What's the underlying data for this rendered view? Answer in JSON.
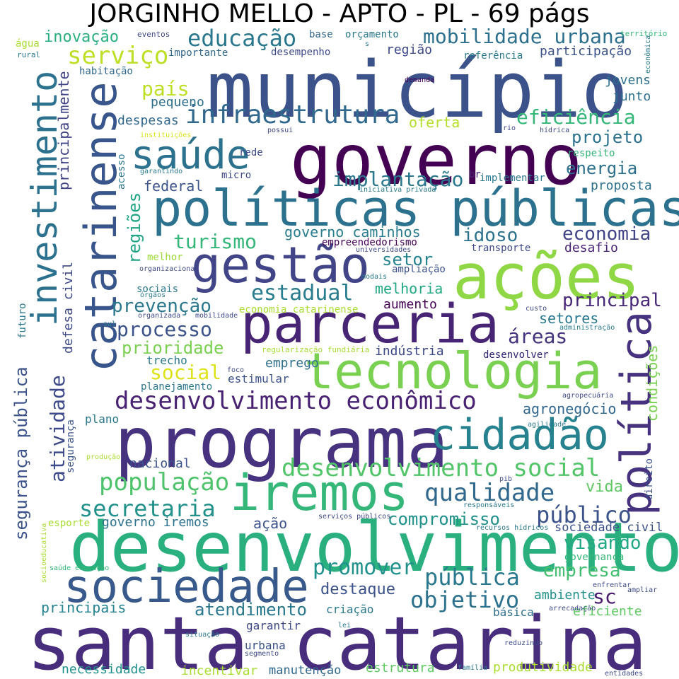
{
  "title": "JORGINHO MELLO - APTO - PL - 69 págs",
  "words": [
    {
      "text": "município",
      "color": "#3b528b"
    },
    {
      "text": "governo",
      "color": "#440154"
    },
    {
      "text": "santa catarina",
      "color": "#472d7b"
    },
    {
      "text": "programa",
      "color": "#46327e"
    },
    {
      "text": "desenvolvimento",
      "color": "#2ab07f"
    },
    {
      "text": "ações",
      "color": "#8fd744"
    },
    {
      "text": "catarinense",
      "color": "#39568c"
    },
    {
      "text": "políticas públicas",
      "color": "#2c728e"
    },
    {
      "text": "gestão",
      "color": "#414487"
    },
    {
      "text": "parceria",
      "color": "#482475"
    },
    {
      "text": "tecnologia",
      "color": "#7ad151"
    },
    {
      "text": "política",
      "color": "#46327e"
    },
    {
      "text": "investimento",
      "color": "#2c728e"
    },
    {
      "text": "sociedade",
      "color": "#38598c"
    },
    {
      "text": "iremos",
      "color": "#35b779"
    },
    {
      "text": "cidadão",
      "color": "#26828e"
    },
    {
      "text": "saúde",
      "color": "#2c728e"
    },
    {
      "text": "desenvolvimento econômico",
      "color": "#482173"
    },
    {
      "text": "infraestrutura",
      "color": "#31688e"
    },
    {
      "text": "segurança pública",
      "color": "#3b528b"
    },
    {
      "text": "desenvolvimento social",
      "color": "#52c569"
    },
    {
      "text": "população",
      "color": "#4ec36b"
    },
    {
      "text": "educação",
      "color": "#2a788e"
    },
    {
      "text": "qualidade",
      "color": "#31688e"
    },
    {
      "text": "secretaria",
      "color": "#21918c"
    },
    {
      "text": "mobilidade urbana",
      "color": "#2d708e"
    },
    {
      "text": "serviço",
      "color": "#bddf26"
    },
    {
      "text": "estadual",
      "color": "#287c8e"
    },
    {
      "text": "processo",
      "color": "#3b528b"
    },
    {
      "text": "regiões",
      "color": "#21a585"
    },
    {
      "text": "turismo",
      "color": "#35b779"
    },
    {
      "text": "promover",
      "color": "#21918c"
    },
    {
      "text": "pública",
      "color": "#2a788e"
    },
    {
      "text": "público",
      "color": "#3b528b"
    },
    {
      "text": "atividade",
      "color": "#3e4a89"
    },
    {
      "text": "objetivo",
      "color": "#2c728e"
    },
    {
      "text": "eficiência",
      "color": "#35b779"
    },
    {
      "text": "implantação",
      "color": "#2a788e"
    },
    {
      "text": "social",
      "color": "#dde318"
    },
    {
      "text": "país",
      "color": "#bddf26"
    },
    {
      "text": "sc",
      "color": "#481a6c"
    },
    {
      "text": "economia",
      "color": "#414487"
    },
    {
      "text": "visando",
      "color": "#22a884"
    },
    {
      "text": "principal",
      "color": "#482878"
    },
    {
      "text": "prevenção",
      "color": "#2a788e"
    },
    {
      "text": "prioridade",
      "color": "#7ad151"
    },
    {
      "text": "áreas",
      "color": "#46337e"
    },
    {
      "text": "projeto",
      "color": "#2c728e"
    },
    {
      "text": "energia",
      "color": "#2d708e"
    },
    {
      "text": "compromisso",
      "color": "#21918c"
    },
    {
      "text": "idoso",
      "color": "#2c728e"
    },
    {
      "text": "setor",
      "color": "#25858e"
    },
    {
      "text": "empresa",
      "color": "#44bf70"
    },
    {
      "text": "atendimento",
      "color": "#2a788e"
    },
    {
      "text": "inovação",
      "color": "#2ab07f"
    },
    {
      "text": "principalmente",
      "color": "#414487"
    },
    {
      "text": "governo caminhos",
      "color": "#287d8e"
    },
    {
      "text": "vida",
      "color": "#5ec962"
    },
    {
      "text": "destaque",
      "color": "#3b528b"
    },
    {
      "text": "condições",
      "color": "#7ad151"
    },
    {
      "text": "agronegócio",
      "color": "#31688e"
    },
    {
      "text": "melhoria",
      "color": "#22a884"
    },
    {
      "text": "setores",
      "color": "#2a788e"
    },
    {
      "text": "oferta",
      "color": "#b5de2b"
    },
    {
      "text": "região",
      "color": "#3e4989"
    },
    {
      "text": "participação",
      "color": "#3b528b"
    },
    {
      "text": "desafio",
      "color": "#482475"
    },
    {
      "text": "indústria",
      "color": "#3e4989"
    },
    {
      "text": "proposta",
      "color": "#2d708e"
    },
    {
      "text": "defesa civil",
      "color": "#3e4989"
    },
    {
      "text": "federal",
      "color": "#3b528b"
    },
    {
      "text": "despesas",
      "color": "#31688e"
    },
    {
      "text": "pequeno",
      "color": "#2d708e"
    },
    {
      "text": "jovens",
      "color": "#2d708e"
    },
    {
      "text": "junto",
      "color": "#2d708e"
    },
    {
      "text": "ação",
      "color": "#3b528b"
    },
    {
      "text": "governo iremos",
      "color": "#2c728e"
    },
    {
      "text": "sociedade civil",
      "color": "#3b528b"
    },
    {
      "text": "ambiente",
      "color": "#21918c"
    },
    {
      "text": "eficiente",
      "color": "#5ec962"
    },
    {
      "text": "nacional",
      "color": "#3b528b"
    },
    {
      "text": "principais",
      "color": "#26828e"
    },
    {
      "text": "necessidade",
      "color": "#21918c"
    },
    {
      "text": "incentivar",
      "color": "#aadc32"
    },
    {
      "text": "produtividade",
      "color": "#aadc32"
    },
    {
      "text": "estrutura",
      "color": "#5ec962"
    },
    {
      "text": "manutenção",
      "color": "#31688e"
    },
    {
      "text": "urbana",
      "color": "#3b528b"
    },
    {
      "text": "garantir",
      "color": "#3e4989"
    },
    {
      "text": "criação",
      "color": "#2a788e"
    },
    {
      "text": "básica",
      "color": "#2d708e"
    },
    {
      "text": "governança",
      "color": "#35b779"
    },
    {
      "text": "direito",
      "color": "#3b528b"
    },
    {
      "text": "aumento",
      "color": "#440154"
    },
    {
      "text": "emprego",
      "color": "#2d708e"
    },
    {
      "text": "estimular",
      "color": "#3b528b"
    },
    {
      "text": "planejamento",
      "color": "#2a788e"
    },
    {
      "text": "trecho",
      "color": "#2a788e"
    },
    {
      "text": "plano",
      "color": "#2a788e"
    },
    {
      "text": "ampliação",
      "color": "#3b528b"
    },
    {
      "text": "transporte",
      "color": "#3e4989"
    },
    {
      "text": "empreendedorismo",
      "color": "#440154"
    },
    {
      "text": "melhor",
      "color": "#a0da39"
    },
    {
      "text": "sociais",
      "color": "#2a788e"
    },
    {
      "text": "economia catarinense",
      "color": "#aadc32"
    },
    {
      "text": "desenvolver",
      "color": "#2d1e74"
    },
    {
      "text": "regularização fundiária",
      "color": "#a8db34"
    },
    {
      "text": "futuro",
      "color": "#2a788e"
    },
    {
      "text": "segurança",
      "color": "#3b528b"
    },
    {
      "text": "micro",
      "color": "#3e4989"
    },
    {
      "text": "rede",
      "color": "#3e4989"
    },
    {
      "text": "acesso",
      "color": "#2a788e"
    },
    {
      "text": "habitação",
      "color": "#31688e"
    },
    {
      "text": "importante",
      "color": "#31688e"
    },
    {
      "text": "desempenho",
      "color": "#3e4989"
    },
    {
      "text": "base",
      "color": "#31688e"
    },
    {
      "text": "orçamento",
      "color": "#2a788e"
    },
    {
      "text": "referência",
      "color": "#2a788e"
    },
    {
      "text": "br",
      "color": "#482475"
    },
    {
      "text": "implementar",
      "color": "#2a788e"
    },
    {
      "text": "respeito",
      "color": "#35b779"
    },
    {
      "text": "esporte",
      "color": "#aadc32"
    },
    {
      "text": "água",
      "color": "#aadc32"
    },
    {
      "text": "rural",
      "color": "#2a788e"
    },
    {
      "text": "eventos",
      "color": "#3e4989"
    },
    {
      "text": "território",
      "color": "#35b779"
    },
    {
      "text": "econômica",
      "color": "#2a788e"
    },
    {
      "text": "demanda",
      "color": "#440154"
    },
    {
      "text": "instituições",
      "color": "#d8e219"
    },
    {
      "text": "possui",
      "color": "#3e4989"
    },
    {
      "text": "rio",
      "color": "#3e4989"
    },
    {
      "text": "hídrica",
      "color": "#3e4989"
    },
    {
      "text": "garantindo",
      "color": "#2a788e"
    },
    {
      "text": "iniciativa privada",
      "color": "#2a788e"
    },
    {
      "text": "universidades",
      "color": "#3e4989"
    },
    {
      "text": "organizacional",
      "color": "#3e4989"
    },
    {
      "text": "modais",
      "color": "#2a788e"
    },
    {
      "text": "órgãos",
      "color": "#2a788e"
    },
    {
      "text": "organizada",
      "color": "#3e4989"
    },
    {
      "text": "mobilidade",
      "color": "#3e4989"
    },
    {
      "text": "sul",
      "color": "#2a788e"
    },
    {
      "text": "custo",
      "color": "#3e4989"
    },
    {
      "text": "administração",
      "color": "#2a788e"
    },
    {
      "text": "foco",
      "color": "#3e4989"
    },
    {
      "text": "agropecuária",
      "color": "#3e4989"
    },
    {
      "text": "agilidade",
      "color": "#2a788e"
    },
    {
      "text": "produção",
      "color": "#aadc32"
    },
    {
      "text": "pib",
      "color": "#3e4989"
    },
    {
      "text": "responsáveis",
      "color": "#2a788e"
    },
    {
      "text": "serviços públicos",
      "color": "#3e4989"
    },
    {
      "text": "recursos hídricos",
      "color": "#2a788e"
    },
    {
      "text": "socioeducativa",
      "color": "#aadc32"
    },
    {
      "text": "saúde educação",
      "color": "#35b779"
    },
    {
      "text": "enfrentar",
      "color": "#3e4989"
    },
    {
      "text": "ampliar",
      "color": "#3e4989"
    },
    {
      "text": "arrecadação",
      "color": "#3e4989"
    },
    {
      "text": "situação",
      "color": "#2a788e"
    },
    {
      "text": "lei",
      "color": "#2a788e"
    },
    {
      "text": "reduzindo",
      "color": "#3e4989"
    },
    {
      "text": "segmento",
      "color": "#3e4989"
    },
    {
      "text": "família",
      "color": "#2a788e"
    },
    {
      "text": "entidades",
      "color": "#3e4989"
    },
    {
      "text": "s",
      "color": "#2a788e"
    }
  ]
}
